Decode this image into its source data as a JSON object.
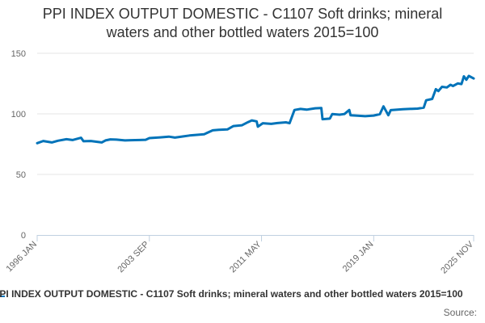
{
  "chart_data": {
    "type": "line",
    "title": "PPI INDEX OUTPUT DOMESTIC - C1107 Soft drinks; mineral waters and other bottled waters 2015=100",
    "title_lines": [
      "PPI INDEX OUTPUT DOMESTIC - C1107 Soft drinks; mineral",
      "waters and other bottled waters 2015=100"
    ],
    "xlabel": "",
    "ylabel": "",
    "x_ticks": [
      "1996 JAN",
      "2003 SEP",
      "2011 MAY",
      "2019 JAN",
      "2025 NOV"
    ],
    "x_range": [
      "1996-01",
      "2025-11"
    ],
    "y_ticks": [
      0,
      50,
      100,
      150
    ],
    "ylim": [
      0,
      150
    ],
    "grid": true,
    "legend": "bottom",
    "series": [
      {
        "name": "PPI INDEX OUTPUT DOMESTIC - C1107 Soft drinks; mineral waters and other bottled waters 2015=100",
        "color": "#0073b9",
        "points": [
          [
            "1996-01",
            75.8
          ],
          [
            "1996-06",
            77.6
          ],
          [
            "1997-01",
            76.4
          ],
          [
            "1997-06",
            77.8
          ],
          [
            "1998-01",
            79.1
          ],
          [
            "1998-06",
            78.4
          ],
          [
            "1999-01",
            80.3
          ],
          [
            "1999-03",
            77.4
          ],
          [
            "1999-09",
            77.6
          ],
          [
            "2000-06",
            76.4
          ],
          [
            "2000-09",
            78.1
          ],
          [
            "2001-01",
            78.9
          ],
          [
            "2001-06",
            78.7
          ],
          [
            "2002-01",
            78.1
          ],
          [
            "2002-06",
            78.3
          ],
          [
            "2003-01",
            78.4
          ],
          [
            "2003-06",
            78.6
          ],
          [
            "2003-09",
            80.0
          ],
          [
            "2004-06",
            80.6
          ],
          [
            "2005-01",
            81.2
          ],
          [
            "2005-06",
            80.4
          ],
          [
            "2006-01",
            81.4
          ],
          [
            "2006-06",
            82.1
          ],
          [
            "2007-01",
            82.7
          ],
          [
            "2007-06",
            83.2
          ],
          [
            "2008-01",
            86.4
          ],
          [
            "2008-06",
            86.9
          ],
          [
            "2009-01",
            87.1
          ],
          [
            "2009-06",
            89.9
          ],
          [
            "2010-01",
            90.6
          ],
          [
            "2010-06",
            93.2
          ],
          [
            "2010-09",
            94.6
          ],
          [
            "2011-01",
            93.8
          ],
          [
            "2011-02",
            89.4
          ],
          [
            "2011-06",
            92.3
          ],
          [
            "2012-01",
            91.7
          ],
          [
            "2012-06",
            92.4
          ],
          [
            "2013-01",
            93.0
          ],
          [
            "2013-04",
            92.3
          ],
          [
            "2013-08",
            103.2
          ],
          [
            "2014-01",
            104.1
          ],
          [
            "2014-06",
            103.5
          ],
          [
            "2015-01",
            104.6
          ],
          [
            "2015-06",
            104.9
          ],
          [
            "2015-07",
            95.6
          ],
          [
            "2016-01",
            96.1
          ],
          [
            "2016-03",
            99.8
          ],
          [
            "2016-09",
            99.3
          ],
          [
            "2017-01",
            99.9
          ],
          [
            "2017-05",
            103.2
          ],
          [
            "2017-06",
            98.8
          ],
          [
            "2018-01",
            98.4
          ],
          [
            "2018-06",
            98.1
          ],
          [
            "2019-01",
            98.6
          ],
          [
            "2019-06",
            99.7
          ],
          [
            "2019-09",
            106.2
          ],
          [
            "2020-01",
            98.9
          ],
          [
            "2020-03",
            103.1
          ],
          [
            "2021-01",
            103.9
          ],
          [
            "2022-01",
            104.3
          ],
          [
            "2022-06",
            105.1
          ],
          [
            "2022-08",
            111.2
          ],
          [
            "2023-01",
            112.3
          ],
          [
            "2023-04",
            120.4
          ],
          [
            "2023-06",
            118.8
          ],
          [
            "2023-09",
            122.3
          ],
          [
            "2024-01",
            121.8
          ],
          [
            "2024-04",
            124.0
          ],
          [
            "2024-06",
            123.0
          ],
          [
            "2024-10",
            125.1
          ],
          [
            "2025-01",
            124.6
          ],
          [
            "2025-03",
            131.0
          ],
          [
            "2025-05",
            128.1
          ],
          [
            "2025-07",
            131.3
          ],
          [
            "2025-11",
            129.2
          ]
        ]
      }
    ]
  },
  "source_label": "Source:"
}
